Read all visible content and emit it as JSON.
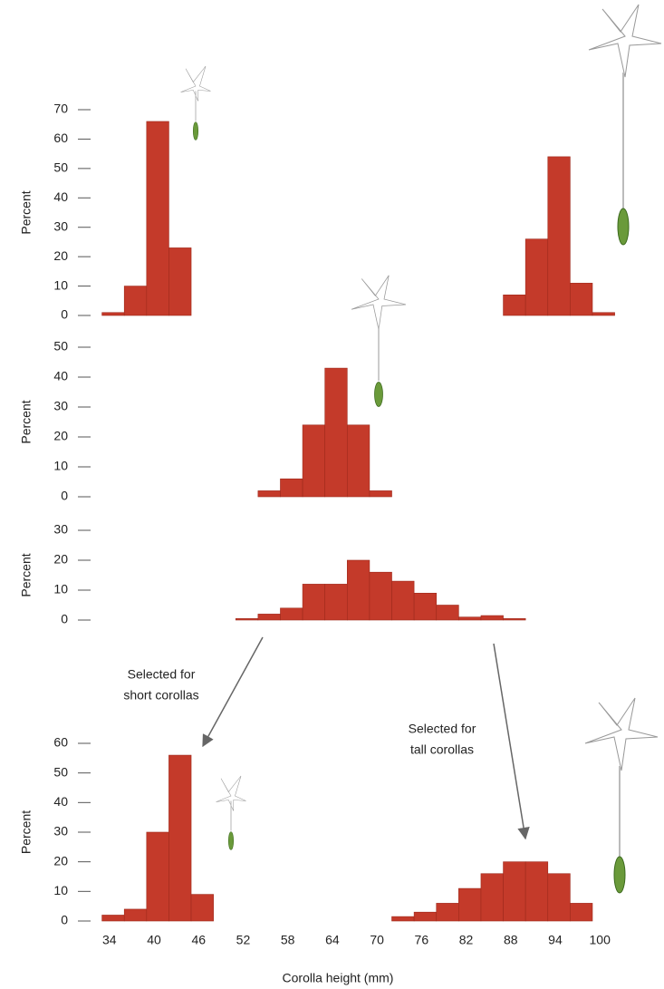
{
  "chart_data": [
    {
      "type": "histogram",
      "ylabel": "Percent",
      "ylim": [
        0,
        70
      ],
      "yticks": [
        0,
        10,
        20,
        30,
        40,
        50,
        60,
        70
      ],
      "series": [
        {
          "color": "#c43a2a",
          "bins": [
            33,
            36,
            39,
            42,
            45
          ],
          "values": [
            1,
            10,
            66,
            23
          ]
        },
        {
          "color": "#c43a2a",
          "bins": [
            87,
            90,
            93,
            96,
            99,
            102
          ],
          "values": [
            7,
            26,
            54,
            11,
            1
          ]
        }
      ]
    },
    {
      "type": "histogram",
      "ylabel": "Percent",
      "ylim": [
        0,
        50
      ],
      "yticks": [
        0,
        10,
        20,
        30,
        40,
        50
      ],
      "series": [
        {
          "color": "#c43a2a",
          "bins": [
            54,
            57,
            60,
            63,
            66,
            69,
            72
          ],
          "values": [
            2,
            6,
            24,
            43,
            24,
            2
          ]
        }
      ]
    },
    {
      "type": "histogram",
      "ylabel": "Percent",
      "ylim": [
        0,
        30
      ],
      "yticks": [
        0,
        10,
        20,
        30
      ],
      "series": [
        {
          "color": "#c43a2a",
          "bins": [
            51,
            54,
            57,
            60,
            63,
            66,
            69,
            72,
            75,
            78,
            81,
            84,
            87,
            90
          ],
          "values": [
            0.5,
            2,
            4,
            12,
            12,
            20,
            16,
            13,
            9,
            5,
            1,
            1.5,
            0.5
          ]
        }
      ]
    },
    {
      "type": "histogram",
      "ylabel": "Percent",
      "ylim": [
        0,
        60
      ],
      "yticks": [
        0,
        10,
        20,
        30,
        40,
        50,
        60
      ],
      "xlabel": "Corolla height (mm)",
      "xlim": [
        30,
        104
      ],
      "xticks": [
        34,
        40,
        46,
        52,
        58,
        64,
        70,
        76,
        82,
        88,
        94,
        100
      ],
      "annotations": [
        {
          "lines": [
            "Selected for",
            "short corollas"
          ]
        },
        {
          "lines": [
            "Selected for",
            "tall corollas"
          ]
        }
      ],
      "series": [
        {
          "color": "#c43a2a",
          "bins": [
            33,
            36,
            39,
            42,
            45,
            48
          ],
          "values": [
            2,
            4,
            30,
            56,
            9
          ]
        },
        {
          "color": "#c43a2a",
          "bins": [
            72,
            75,
            78,
            81,
            84,
            87,
            90,
            93,
            96,
            99
          ],
          "values": [
            1.5,
            3,
            6,
            11,
            16,
            20,
            20,
            16,
            6
          ]
        }
      ]
    }
  ]
}
